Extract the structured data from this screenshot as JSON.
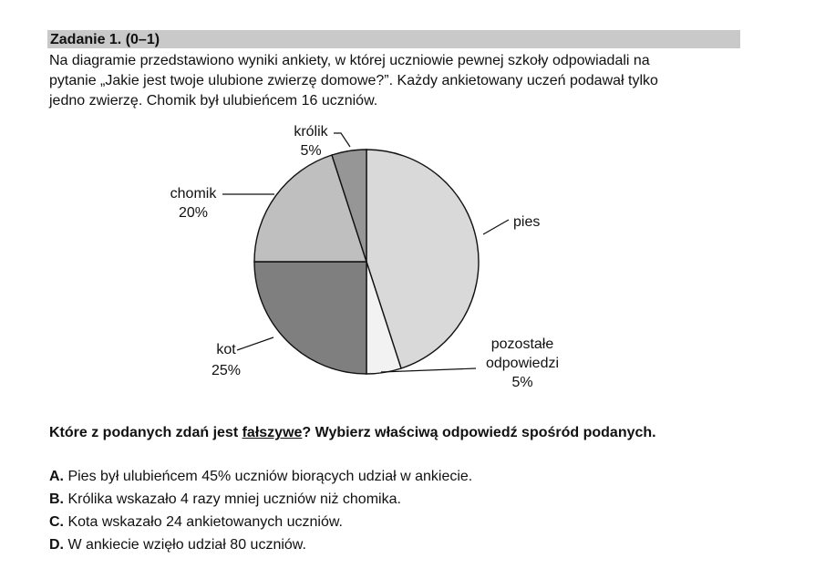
{
  "task": {
    "title": "Zadanie 1. (0–1)",
    "intro_lines": [
      "Na diagramie przedstawiono wyniki ankiety, w której uczniowie pewnej szkoły odpowiadali na",
      "pytanie „Jakie jest twoje ulubione zwierzę domowe?”. Każdy ankietowany uczeń podawał tylko",
      "jedno zwierzę. Chomik był ulubieńcem 16 uczniów."
    ]
  },
  "chart_data": {
    "type": "pie",
    "slices": [
      {
        "label": "pies",
        "value": 45,
        "value_label": "",
        "color": "#d9d9d9"
      },
      {
        "label": "pozostałe odpowiedzi",
        "label_lines": [
          "pozostałe",
          "odpowiedzi"
        ],
        "value": 5,
        "value_label": "5%",
        "color": "#f2f2f2"
      },
      {
        "label": "kot",
        "value": 25,
        "value_label": "25%",
        "color": "#7f7f7f"
      },
      {
        "label": "chomik",
        "value": 20,
        "value_label": "20%",
        "color": "#bfbfbf"
      },
      {
        "label": "królik",
        "value": 5,
        "value_label": "5%",
        "color": "#969696"
      }
    ]
  },
  "question": {
    "before": "Które z podanych zdań jest ",
    "emphasis": "fałszywe",
    "after": "? Wybierz właściwą odpowiedź spośród podanych."
  },
  "options": [
    {
      "letter": "A.",
      "text": "Pies był ulubieńcem 45% uczniów biorących udział w ankiecie."
    },
    {
      "letter": "B.",
      "text": "Królika wskazało 4 razy mniej uczniów niż chomika."
    },
    {
      "letter": "C.",
      "text": "Kota wskazało 24 ankietowanych uczniów."
    },
    {
      "letter": "D.",
      "text": "W ankiecie wzięło udział 80 uczniów."
    }
  ]
}
